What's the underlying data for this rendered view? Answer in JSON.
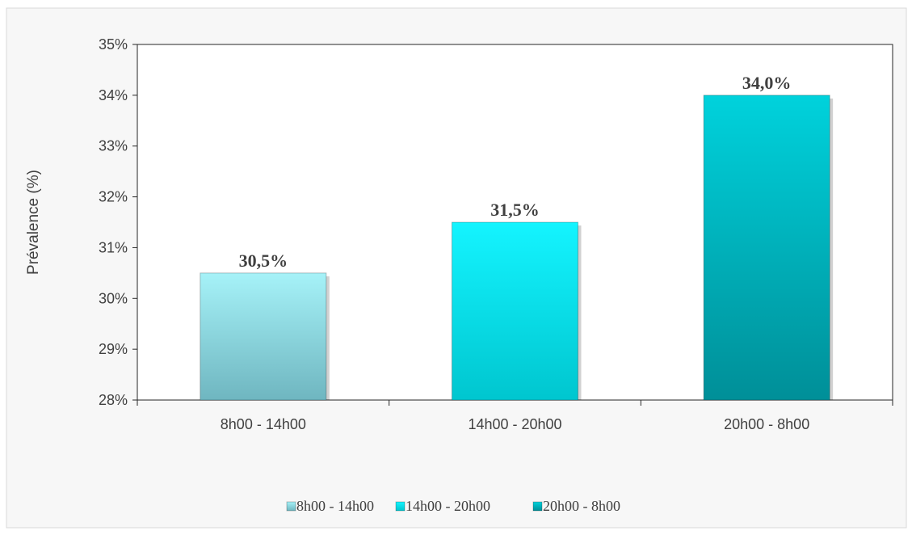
{
  "chart_data": {
    "type": "bar",
    "title": "",
    "xlabel": "",
    "ylabel": "Prévalence (%)",
    "ylim": [
      28,
      35
    ],
    "yticks": [
      "28%",
      "29%",
      "30%",
      "31%",
      "32%",
      "33%",
      "34%",
      "35%"
    ],
    "categories": [
      "8h00 - 14h00",
      "14h00 - 20h00",
      "20h00 - 8h00"
    ],
    "values": [
      30.5,
      31.5,
      34.0
    ],
    "value_labels": [
      "30,5%",
      "31,5%",
      "34,0%"
    ],
    "colors": [
      {
        "top": "#a6f2f8",
        "bottom": "#6fb6c0"
      },
      {
        "top": "#14f4ff",
        "bottom": "#00c6cf"
      },
      {
        "top": "#00d2dc",
        "bottom": "#008f98"
      }
    ],
    "legend": {
      "position": "bottom",
      "entries": [
        "8h00 - 14h00",
        "14h00 - 20h00",
        "20h00 - 8h00"
      ]
    },
    "grid": false
  }
}
